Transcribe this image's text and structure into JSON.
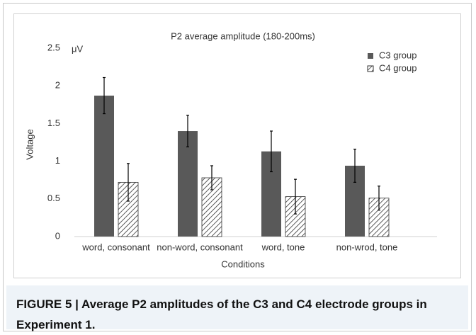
{
  "chart_data": {
    "type": "bar",
    "title": "P2 average amplitude (180-200ms)",
    "y_unit": "μV",
    "ylabel": "Voltage",
    "xlabel": "Conditions",
    "categories": [
      "word, consonant",
      "non-word, consonant",
      "word, tone",
      "non-wrod, tone"
    ],
    "series": [
      {
        "name": "C3 group",
        "color": "#595959",
        "hatch": false,
        "values": [
          1.87,
          1.4,
          1.13,
          0.94
        ],
        "errors": [
          0.24,
          0.21,
          0.27,
          0.22
        ]
      },
      {
        "name": "C4 group",
        "color": "#333333",
        "hatch": true,
        "values": [
          0.72,
          0.78,
          0.53,
          0.51
        ],
        "errors": [
          0.25,
          0.16,
          0.23,
          0.16
        ]
      }
    ],
    "ylim": [
      0,
      2.5
    ],
    "yticks": [
      0,
      0.5,
      1,
      1.5,
      2,
      2.5
    ],
    "grid": false,
    "legend": "upper right"
  },
  "caption": "FIGURE 5 | Average P2 amplitudes of the C3 and C4 electrode groups in Experiment 1."
}
